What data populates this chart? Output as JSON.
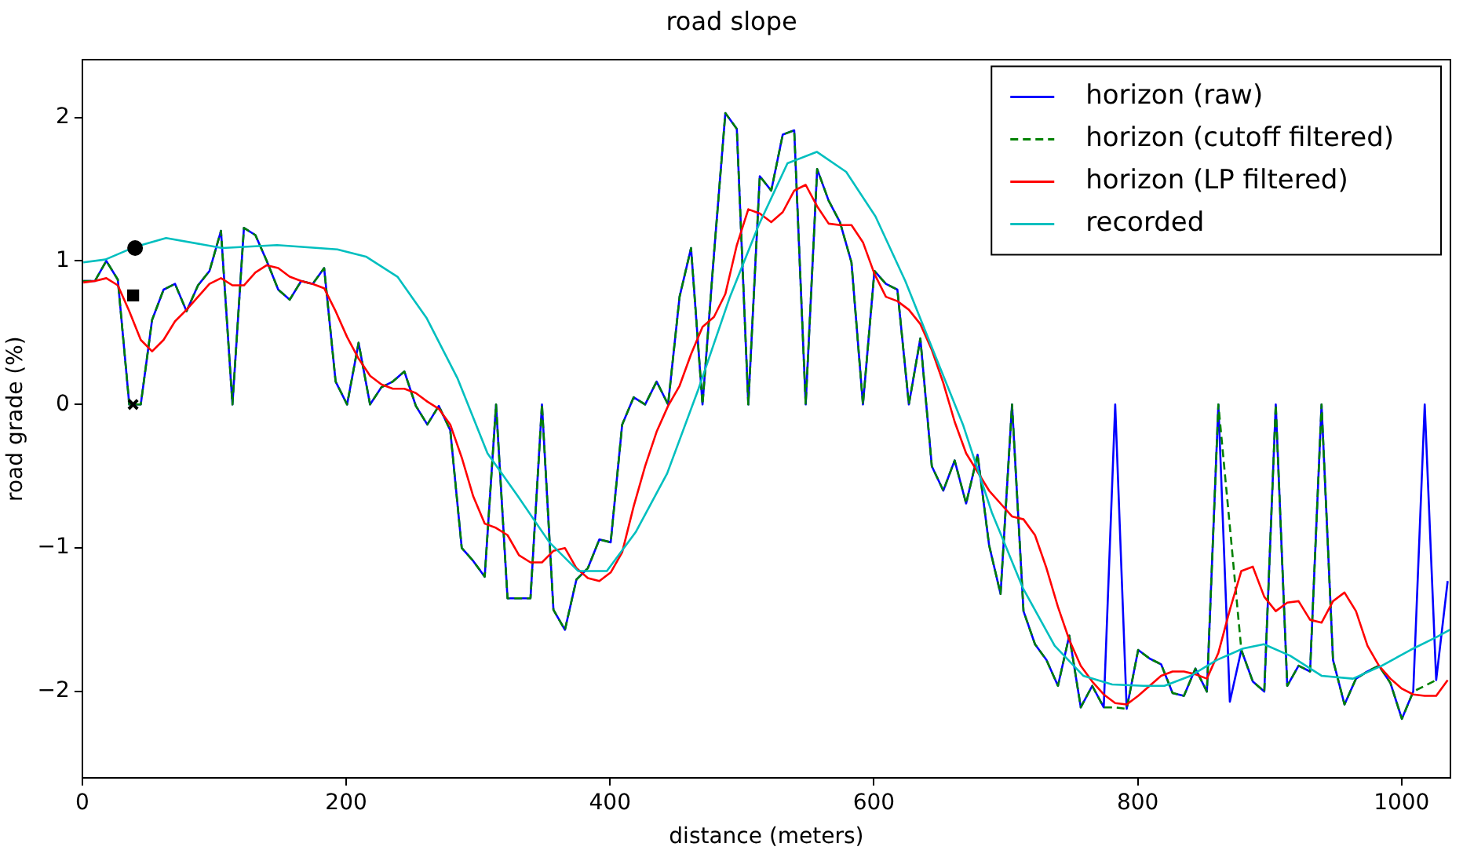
{
  "chart_data": {
    "type": "line",
    "title": "road slope",
    "xlabel": "distance (meters)",
    "ylabel": "road grade (%)",
    "x": [
      0.8,
      9.5,
      18.2,
      26.9,
      35.6,
      44.3,
      52.9,
      61.6,
      70.3,
      79.0,
      87.7,
      96.4,
      105.1,
      113.8,
      122.5,
      131.2,
      139.8,
      148.5,
      157.2,
      165.9,
      174.6,
      183.3,
      192.0,
      200.7,
      209.4,
      218.1,
      226.7,
      235.4,
      244.1,
      252.8,
      261.5,
      270.2,
      278.9,
      287.6,
      296.3,
      305.0,
      313.6,
      322.3,
      331.0,
      339.7,
      348.4,
      357.1,
      365.8,
      374.5,
      383.2,
      391.9,
      400.5,
      409.2,
      417.9,
      426.6,
      435.3,
      444.0,
      452.7,
      461.4,
      470.1,
      478.8,
      487.4,
      496.1,
      504.8,
      513.5,
      522.2,
      530.9,
      539.6,
      548.3,
      557.0,
      565.7,
      574.3,
      583.0,
      591.7,
      600.4,
      609.1,
      617.8,
      626.5,
      635.2,
      643.9,
      652.6,
      661.2,
      669.9,
      678.6,
      687.3,
      696.0,
      704.7,
      713.4,
      722.1,
      730.8,
      739.5,
      748.1,
      756.8,
      765.5,
      774.2,
      782.9,
      791.6,
      800.3,
      809.0,
      817.7,
      826.4,
      835.0,
      843.7,
      852.4,
      861.1,
      869.8,
      878.5,
      887.2,
      895.9,
      904.6,
      913.3,
      921.9,
      930.6,
      939.3,
      948.0,
      956.7,
      965.4,
      974.1,
      982.8,
      991.5,
      1000.2,
      1008.8,
      1017.5,
      1026.2,
      1034.9
    ],
    "series": [
      {
        "name": "horizon (raw)",
        "color": "#0000ff",
        "values": [
          0.86,
          0.86,
          1.0,
          0.87,
          0.0,
          0.0,
          0.59,
          0.8,
          0.84,
          0.65,
          0.83,
          0.93,
          1.21,
          0.0,
          1.23,
          1.18,
          1.0,
          0.8,
          0.73,
          0.86,
          0.84,
          0.95,
          0.16,
          0.0,
          0.43,
          0.0,
          0.12,
          0.16,
          0.23,
          -0.01,
          -0.14,
          -0.01,
          -0.18,
          -1.0,
          -1.09,
          -1.2,
          0.0,
          -1.35,
          -1.35,
          -1.35,
          0.0,
          -1.43,
          -1.57,
          -1.22,
          -1.14,
          -0.94,
          -0.96,
          -0.14,
          0.05,
          0.0,
          0.16,
          0.0,
          0.75,
          1.09,
          0.0,
          1.05,
          2.03,
          1.92,
          0.0,
          1.59,
          1.49,
          1.88,
          1.91,
          0.0,
          1.64,
          1.42,
          1.27,
          0.99,
          0.0,
          0.93,
          0.84,
          0.8,
          0.0,
          0.46,
          -0.43,
          -0.6,
          -0.39,
          -0.69,
          -0.35,
          -0.98,
          -1.32,
          0.0,
          -1.44,
          -1.67,
          -1.78,
          -1.96,
          -1.61,
          -2.11,
          -1.96,
          -2.11,
          0.0,
          -2.12,
          -1.71,
          -1.77,
          -1.81,
          -2.01,
          -2.03,
          -1.84,
          -2.0,
          0.0,
          -2.07,
          -1.71,
          -1.93,
          -2.0,
          0.0,
          -1.96,
          -1.82,
          -1.86,
          0.0,
          -1.78,
          -2.09,
          -1.91,
          -1.86,
          -1.82,
          -1.94,
          -2.19,
          -2.0,
          0.0,
          -1.92,
          -1.23
        ]
      },
      {
        "name": "horizon (cutoff filtered)",
        "color": "#008000",
        "line_style": "dashed",
        "values": [
          0.86,
          0.86,
          1.0,
          0.87,
          0.0,
          0.0,
          0.59,
          0.8,
          0.84,
          0.65,
          0.83,
          0.93,
          1.21,
          0.0,
          1.23,
          1.18,
          1.0,
          0.8,
          0.73,
          0.86,
          0.84,
          0.95,
          0.16,
          0.0,
          0.43,
          0.0,
          0.12,
          0.16,
          0.23,
          -0.01,
          -0.14,
          -0.01,
          -0.18,
          -1.0,
          -1.09,
          -1.2,
          0.0,
          -1.35,
          -1.35,
          -1.35,
          0.0,
          -1.43,
          -1.57,
          -1.22,
          -1.14,
          -0.94,
          -0.96,
          -0.14,
          0.05,
          0.0,
          0.16,
          0.0,
          0.75,
          1.09,
          0.0,
          1.05,
          2.03,
          1.92,
          0.0,
          1.59,
          1.49,
          1.88,
          1.91,
          0.0,
          1.64,
          1.42,
          1.27,
          0.99,
          0.0,
          0.93,
          0.84,
          0.8,
          0.0,
          0.46,
          -0.43,
          -0.6,
          -0.39,
          -0.69,
          -0.35,
          -0.98,
          -1.32,
          0.0,
          -1.44,
          -1.67,
          -1.78,
          -1.96,
          -1.61,
          -2.11,
          -1.96,
          -2.11,
          -2.11,
          -2.12,
          -1.71,
          -1.77,
          -1.81,
          -2.01,
          -2.03,
          -1.84,
          -2.0,
          0.0,
          -0.85,
          -1.71,
          -1.93,
          -2.0,
          0.0,
          -1.96,
          -1.82,
          -1.86,
          0.0,
          -1.78,
          -2.09,
          -1.91,
          -1.86,
          -1.82,
          -1.94,
          -2.19,
          -2.0,
          -1.96,
          -1.92,
          null
        ]
      },
      {
        "name": "horizon (LP filtered)",
        "color": "#ff0000",
        "values": [
          0.85,
          0.86,
          0.88,
          0.83,
          0.65,
          0.45,
          0.37,
          0.45,
          0.58,
          0.66,
          0.75,
          0.84,
          0.88,
          0.83,
          0.83,
          0.92,
          0.97,
          0.95,
          0.89,
          0.86,
          0.84,
          0.81,
          0.65,
          0.47,
          0.32,
          0.2,
          0.14,
          0.11,
          0.11,
          0.08,
          0.02,
          -0.03,
          -0.14,
          -0.37,
          -0.64,
          -0.83,
          -0.86,
          -0.91,
          -1.05,
          -1.1,
          -1.1,
          -1.02,
          -1.0,
          -1.14,
          -1.21,
          -1.23,
          -1.17,
          -1.03,
          -0.71,
          -0.43,
          -0.19,
          -0.01,
          0.13,
          0.35,
          0.54,
          0.61,
          0.77,
          1.11,
          1.36,
          1.33,
          1.27,
          1.34,
          1.49,
          1.53,
          1.38,
          1.26,
          1.25,
          1.25,
          1.13,
          0.91,
          0.75,
          0.72,
          0.66,
          0.56,
          0.38,
          0.15,
          -0.12,
          -0.34,
          -0.47,
          -0.6,
          -0.69,
          -0.78,
          -0.8,
          -0.91,
          -1.14,
          -1.41,
          -1.64,
          -1.82,
          -1.93,
          -2.02,
          -2.08,
          -2.09,
          -2.03,
          -1.96,
          -1.89,
          -1.86,
          -1.86,
          -1.88,
          -1.91,
          -1.73,
          -1.43,
          -1.16,
          -1.13,
          -1.34,
          -1.44,
          -1.38,
          -1.37,
          -1.5,
          -1.52,
          -1.37,
          -1.31,
          -1.44,
          -1.68,
          -1.82,
          -1.91,
          -1.98,
          -2.02,
          -2.03,
          -2.03,
          -1.92
        ]
      },
      {
        "name": "recorded",
        "color": "#00bfbf",
        "x": [
          0.8,
          17.5,
          40.5,
          63.5,
          106,
          147.6,
          193.3,
          215,
          238.9,
          261.1,
          284.5,
          307.1,
          330.2,
          354,
          375.8,
          397.6,
          419.4,
          443.3,
          467.1,
          490.9,
          512.7,
          534.5,
          556.7,
          579,
          601.2,
          623.8,
          645.6,
          667.5,
          689.3,
          713,
          737,
          758.7,
          780.6,
          804.4,
          820.2,
          840.1,
          859.9,
          879.8,
          895.6,
          915.5,
          939.3,
          963.1,
          985,
          1006.7,
          1026.5,
          1036.5
        ],
        "values": [
          0.99,
          1.01,
          1.1,
          1.16,
          1.09,
          1.11,
          1.08,
          1.03,
          0.89,
          0.6,
          0.18,
          -0.34,
          -0.64,
          -0.96,
          -1.16,
          -1.16,
          -0.89,
          -0.48,
          0.11,
          0.75,
          1.25,
          1.68,
          1.76,
          1.62,
          1.31,
          0.86,
          0.36,
          -0.14,
          -0.75,
          -1.28,
          -1.68,
          -1.89,
          -1.95,
          -1.96,
          -1.96,
          -1.89,
          -1.78,
          -1.7,
          -1.67,
          -1.75,
          -1.89,
          -1.91,
          -1.82,
          -1.71,
          -1.62,
          -1.57
        ]
      },
      {
        "type": "scatter",
        "marker": "cross",
        "color": "#000000",
        "x": [
          38.5
        ],
        "values": [
          0.0
        ]
      },
      {
        "type": "scatter",
        "marker": "square",
        "color": "#000000",
        "x": [
          38.5
        ],
        "values": [
          0.76
        ]
      },
      {
        "type": "scatter",
        "marker": "circle",
        "color": "#000000",
        "x": [
          40
        ],
        "values": [
          1.09
        ]
      }
    ],
    "xlim": [
      0,
      1037
    ],
    "xticks": [
      0,
      200,
      400,
      600,
      800,
      1000
    ],
    "ylim": [
      -2.6,
      2.4
    ],
    "yticks": [
      -2,
      -1,
      0,
      1,
      2
    ],
    "legend": "top right"
  }
}
